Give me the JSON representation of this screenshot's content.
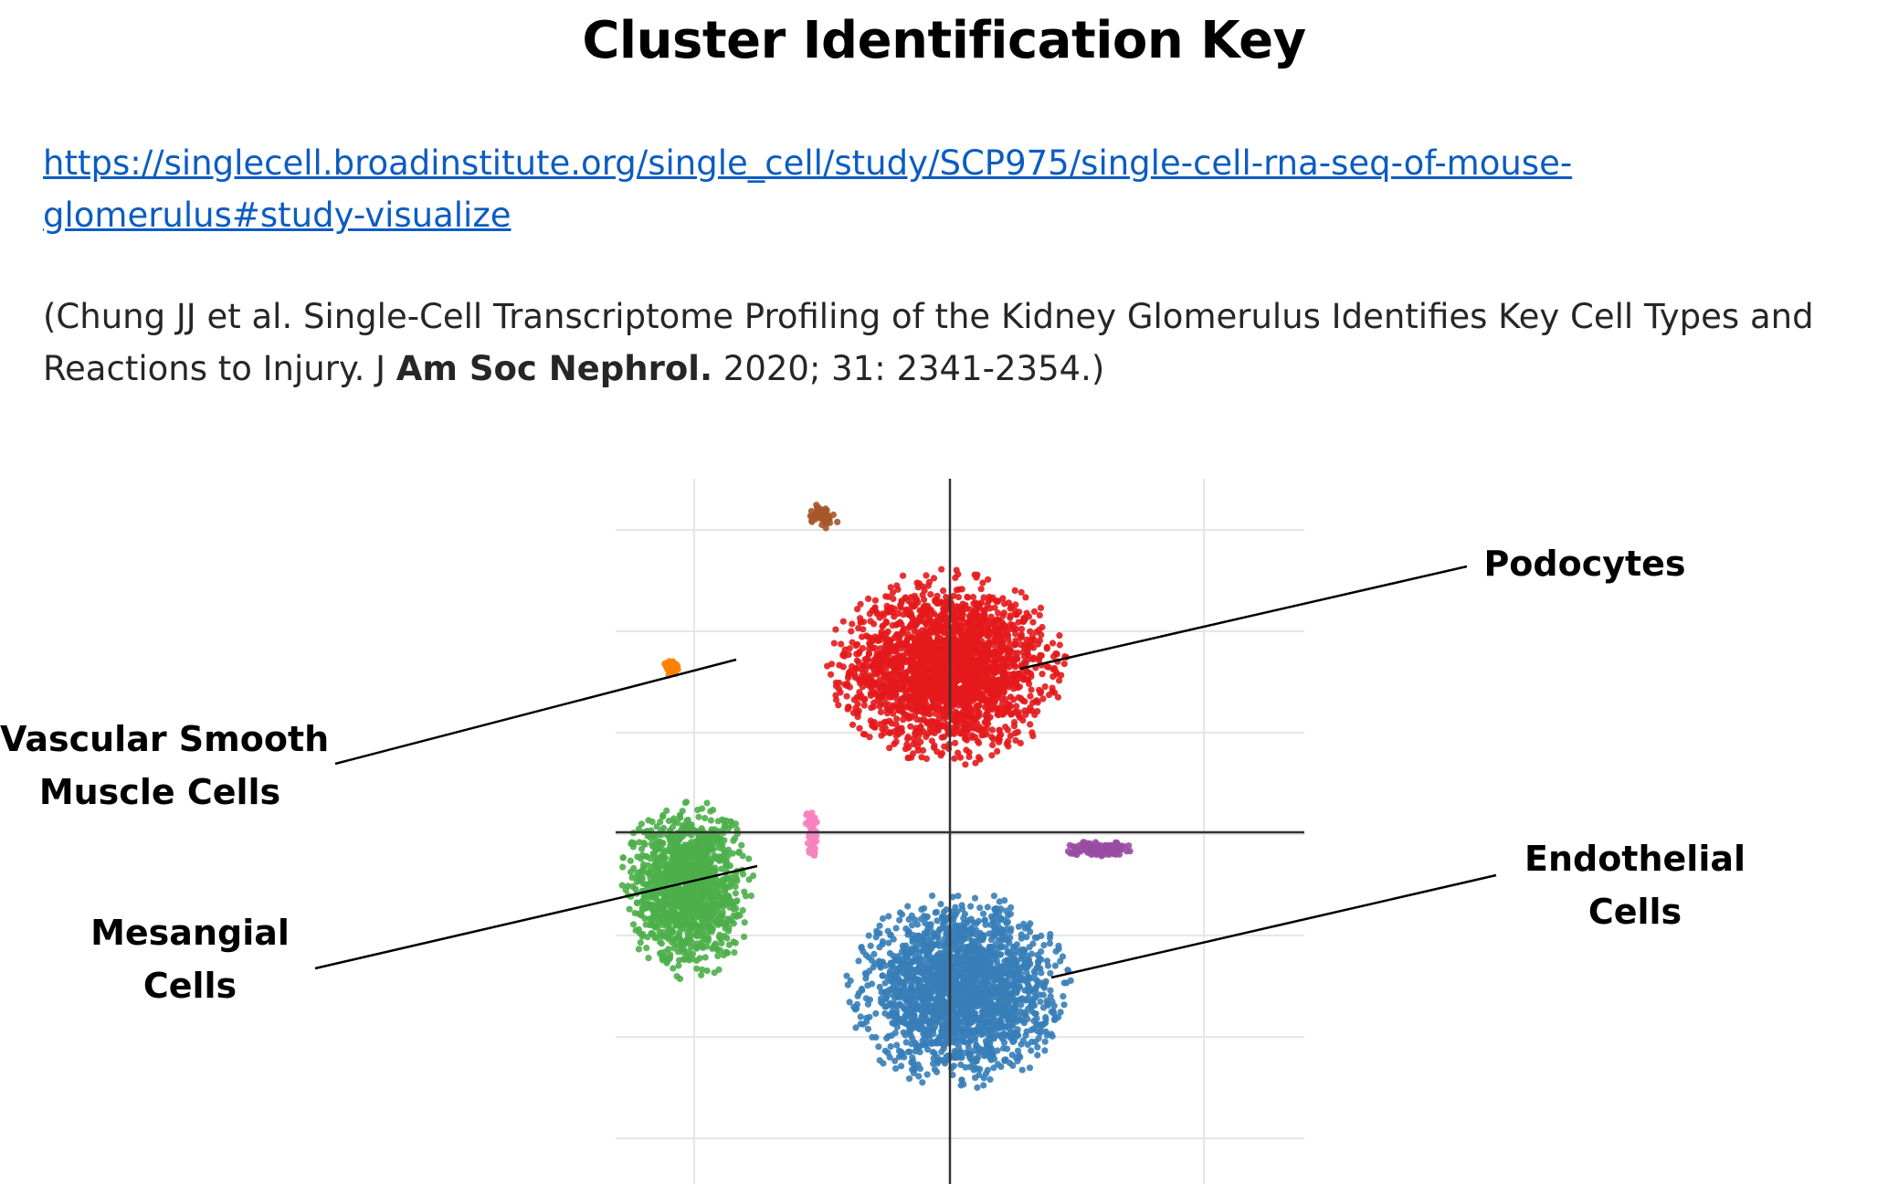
{
  "title": "Cluster Identification Key",
  "link": {
    "line1": "https://singlecell.broadinstitute.org/single_cell/study/SCP975/single-cell-rna-seq-of-mouse-",
    "line2": "glomerulus#study-visualize"
  },
  "citation": {
    "part1": "(Chung JJ et al. Single-Cell Transcriptome Profiling of the Kidney Glomerulus Identifies Key Cell Types and",
    "part2": "Reactions to Injury. J ",
    "bold": "Am Soc Nephrol.",
    "part3": " 2020; 31: 2341-2354.)"
  },
  "labels": {
    "podocytes": "Podocytes",
    "vsmc_line1": "Vascular Smooth",
    "vsmc_line2": "Muscle Cells",
    "mesangial_line1": "Mesangial",
    "mesangial_line2": "Cells",
    "endothelial_line1": "Endothelial",
    "endothelial_line2": "Cells"
  },
  "chart_data": {
    "type": "scatter",
    "grid": true,
    "legend": "none",
    "xlim": [
      -10,
      17
    ],
    "ylim": [
      -14,
      14
    ],
    "clusters": [
      {
        "name": "Podocytes",
        "color": "#e41a1c",
        "center": [
          3.0,
          6.5
        ],
        "spread": [
          3.4,
          2.8
        ],
        "count": 2400
      },
      {
        "name": "Endothelial Cells",
        "color": "#377eb8",
        "center": [
          3.5,
          -6.3
        ],
        "spread": [
          3.2,
          2.8
        ],
        "count": 2200
      },
      {
        "name": "Mesangial Cells",
        "color": "#4daf4a",
        "center": [
          -7.2,
          -2.2
        ],
        "spread": [
          1.9,
          2.7
        ],
        "count": 1300
      },
      {
        "name": "Vascular Smooth Muscle Cells",
        "color": "#ff7f00",
        "center": [
          -7.8,
          6.5
        ],
        "spread": [
          0.25,
          0.25
        ],
        "count": 70
      },
      {
        "name": "",
        "color": "#a65628",
        "center": [
          -1.9,
          12.5
        ],
        "spread": [
          0.5,
          0.4
        ],
        "count": 50
      },
      {
        "name": "",
        "color": "#f781bf",
        "center": [
          -2.3,
          0.0
        ],
        "spread": [
          0.2,
          0.9
        ],
        "count": 60
      },
      {
        "name": "",
        "color": "#984ea3",
        "center": [
          9.0,
          -0.7
        ],
        "spread": [
          1.0,
          0.25
        ],
        "count": 130
      }
    ]
  }
}
